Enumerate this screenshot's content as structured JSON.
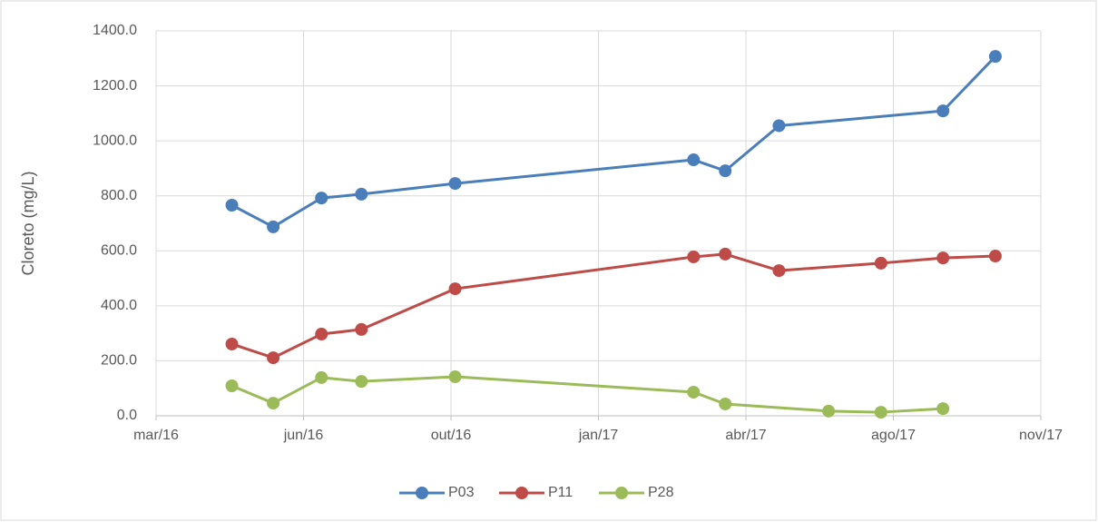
{
  "chart_data": {
    "type": "line",
    "y_label": "Cloreto (mg/L)",
    "xlim": [
      42430,
      43072
    ],
    "xticks": [
      {
        "value": 42430,
        "label": "mar/16"
      },
      {
        "value": 42537,
        "label": "jun/16"
      },
      {
        "value": 42644,
        "label": "out/16"
      },
      {
        "value": 42751,
        "label": "jan/17"
      },
      {
        "value": 42858,
        "label": "abr/17"
      },
      {
        "value": 42965,
        "label": "ago/17"
      },
      {
        "value": 43072,
        "label": "nov/17"
      }
    ],
    "ylim": [
      0,
      1400
    ],
    "yticks": [
      {
        "value": 0,
        "label": "0.0"
      },
      {
        "value": 200,
        "label": "200.0"
      },
      {
        "value": 400,
        "label": "400.0"
      },
      {
        "value": 600,
        "label": "600.0"
      },
      {
        "value": 800,
        "label": "800.0"
      },
      {
        "value": 1000,
        "label": "1000.0"
      },
      {
        "value": 1200,
        "label": "1200.0"
      },
      {
        "value": 1400,
        "label": "1400.0"
      }
    ],
    "grid": true,
    "legend": "bottom",
    "series": [
      {
        "name": "P03",
        "color": "#4a7ebb",
        "x": [
          42485,
          42515,
          42550,
          42579,
          42647,
          42820,
          42843,
          42882,
          43001,
          43039
        ],
        "values": [
          766,
          687,
          792,
          806,
          845,
          931,
          891,
          1055,
          1109,
          1307
        ]
      },
      {
        "name": "P11",
        "color": "#be4b48",
        "x": [
          42485,
          42515,
          42550,
          42579,
          42647,
          42820,
          42843,
          42882,
          42956,
          43001,
          43039
        ],
        "values": [
          261,
          211,
          297,
          314,
          462,
          578,
          588,
          528,
          555,
          574,
          581
        ]
      },
      {
        "name": "P28",
        "color": "#9bbb59",
        "x": [
          42485,
          42515,
          42550,
          42579,
          42647,
          42820,
          42843,
          42918,
          42956,
          43001
        ],
        "values": [
          109,
          46,
          139,
          125,
          142,
          86,
          43,
          17,
          13,
          26
        ]
      }
    ]
  }
}
